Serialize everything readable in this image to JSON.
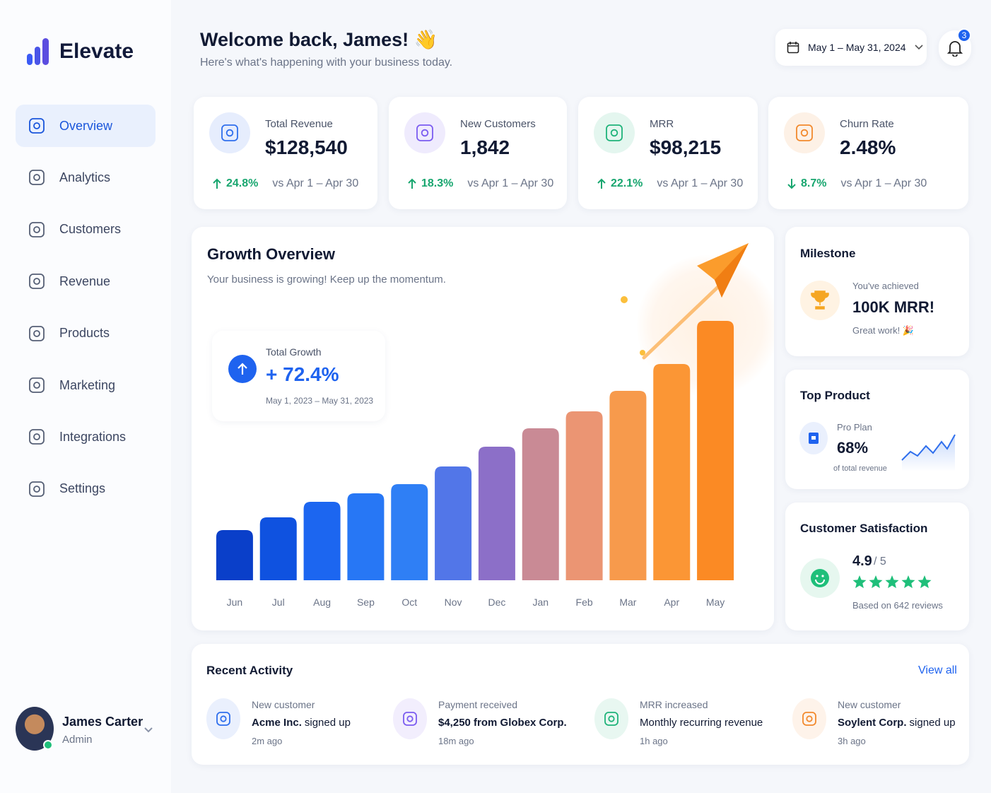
{
  "sidebar": {
    "brand": "Elevate",
    "nav": [
      "Overview",
      "Analytics",
      "Customers",
      "Revenue",
      "Products",
      "Marketing",
      "Integrations",
      "Settings"
    ],
    "active": 0,
    "user": {
      "name": "James Carter",
      "role": "Admin"
    }
  },
  "header": {
    "title": "Welcome back, James! 👋",
    "subtitle": "Here's what's happening with your business today.",
    "date_range": "May 1 – May 31, 2024",
    "notifications": 3
  },
  "kpis": [
    {
      "label": "Total Revenue",
      "value": "$128,540",
      "change": "24.8%",
      "trend": "up",
      "comparison": "vs Apr 1 – Apr 30",
      "color": "#2f6fed"
    },
    {
      "label": "New Customers",
      "value": "1,842",
      "change": "18.3%",
      "trend": "up",
      "comparison": "vs Apr 1 – Apr 30",
      "color": "#7b5cf0"
    },
    {
      "label": "MRR",
      "value": "$98,215",
      "change": "22.1%",
      "trend": "up",
      "comparison": "vs Apr 1 – Apr 30",
      "color": "#1fb37a"
    },
    {
      "label": "Churn Rate",
      "value": "2.48%",
      "change": "8.7%",
      "trend": "down",
      "comparison": "vs Apr 1 – Apr 30",
      "color": "#f28a2e"
    }
  ],
  "growth": {
    "title": "Growth Overview",
    "subtitle": "Your business is growing! Keep up the momentum.",
    "total_growth": {
      "label": "Total Growth",
      "value": "+ 72.4%",
      "period": "May 1, 2023 – May 31, 2023"
    }
  },
  "chart_data": {
    "type": "bar",
    "categories": [
      "Jun",
      "Jul",
      "Aug",
      "Sep",
      "Oct",
      "Nov",
      "Dec",
      "Jan",
      "Feb",
      "Mar",
      "Apr",
      "May"
    ],
    "values": [
      71,
      89,
      111,
      123,
      136,
      161,
      189,
      215,
      239,
      268,
      306,
      367
    ],
    "colors": [
      "#0a3fc9",
      "#0f52e0",
      "#1c66f0",
      "#2777f5",
      "#2f7ff5",
      "#5276e8",
      "#8c6fc8",
      "#c98a95",
      "#eb9573",
      "#f79a4c",
      "#fb9635",
      "#fb8a24"
    ]
  },
  "milestone": {
    "title": "Milestone",
    "kicker": "You've achieved",
    "value": "100K MRR!",
    "note": "Great work! 🎉"
  },
  "top_product": {
    "title": "Top Product",
    "name": "Pro Plan",
    "value": "68%",
    "note": "of total revenue"
  },
  "satisfaction": {
    "title": "Customer Satisfaction",
    "rating": "4.9",
    "scale": "/ 5",
    "reviews": "Based on 642 reviews"
  },
  "activity": {
    "title": "Recent Activity",
    "view_all": "View all",
    "items": [
      {
        "title": "New customer",
        "bold": "Acme Inc.",
        "text": "signed up",
        "time": "2m ago",
        "color": "#2f6fed"
      },
      {
        "title": "Payment received",
        "bold": "$4,250 from Globex Corp.",
        "time": "18m ago",
        "color": "#7b5cf0"
      },
      {
        "title": "MRR increased",
        "text": "Monthly recurring revenue",
        "time": "1h ago",
        "color": "#1fb37a"
      },
      {
        "title": "New customer",
        "bold": "Soylent Corp.",
        "text": "signed up",
        "time": "3h ago",
        "color": "#f28a2e"
      }
    ]
  }
}
